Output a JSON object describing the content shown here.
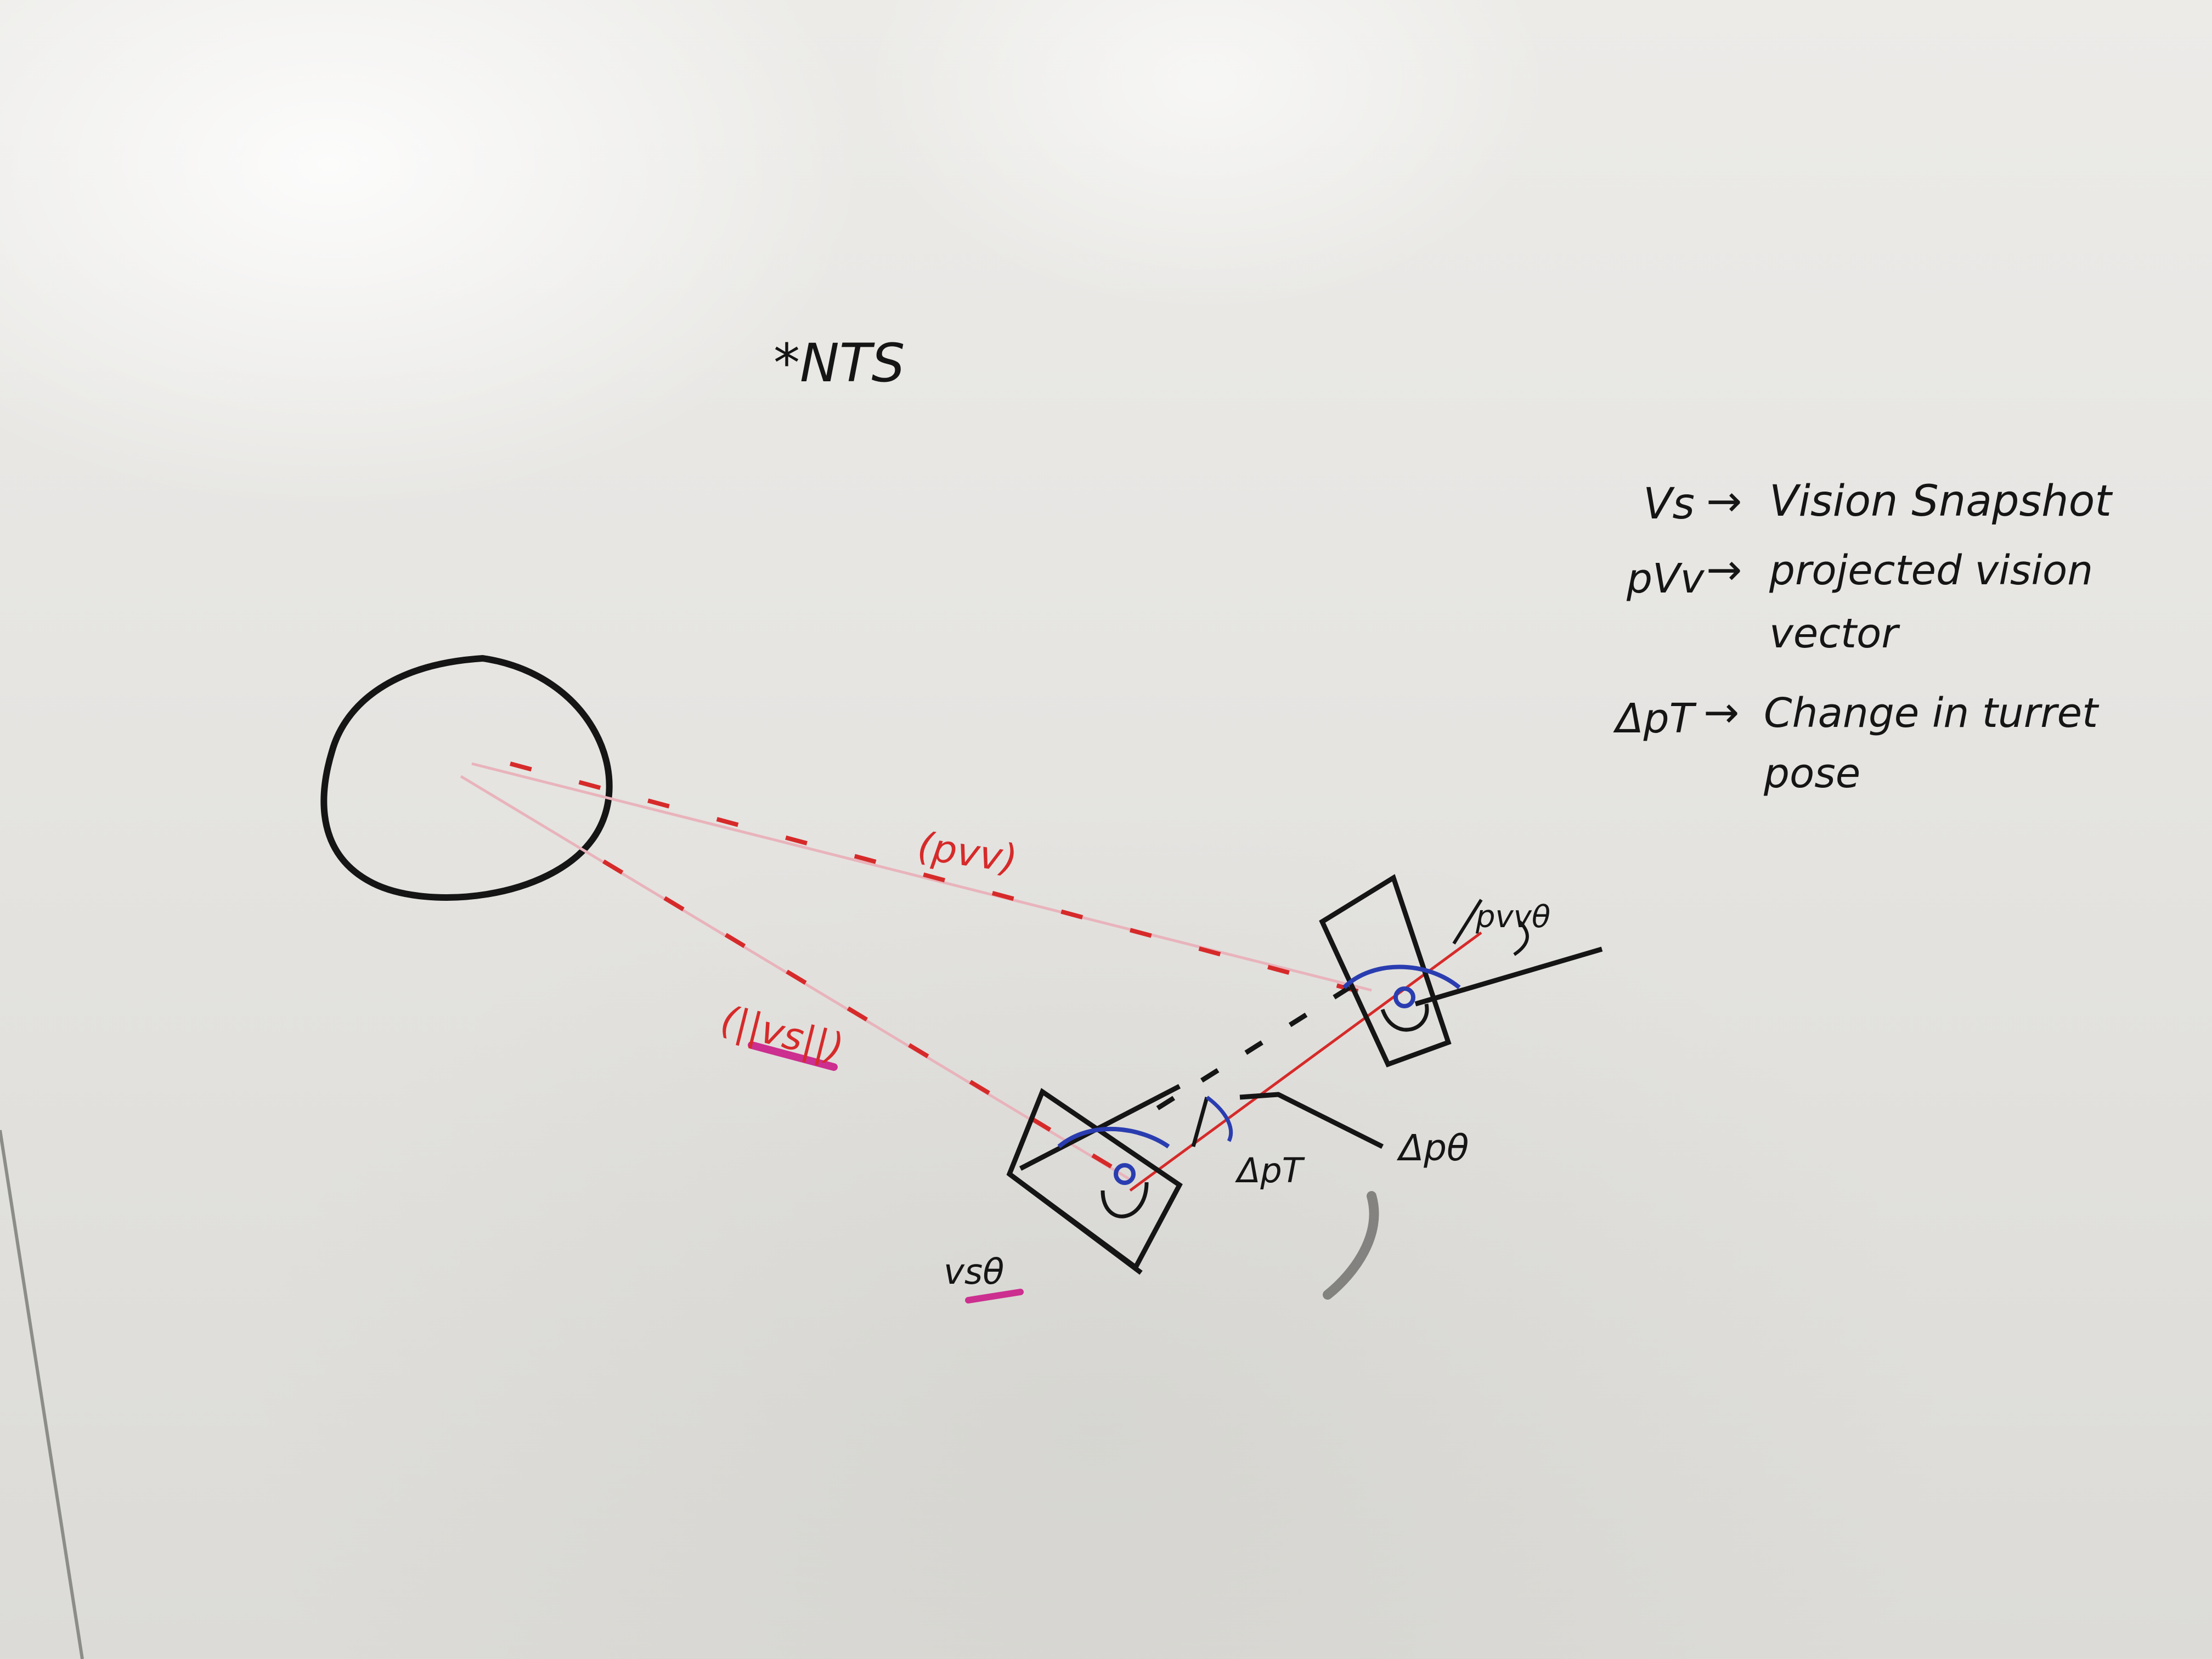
{
  "board": {
    "note": "*NTS"
  },
  "legend": {
    "items": [
      {
        "symbol": "Vs",
        "arrow": "→",
        "meaning": "Vision Snapshot"
      },
      {
        "symbol": "pVv",
        "arrow": "→",
        "meaning_line1": "projected vision",
        "meaning_line2": "vector"
      },
      {
        "symbol": "ΔpT",
        "arrow": "→",
        "meaning_line1": "Change in turret",
        "meaning_line2": "pose"
      }
    ]
  },
  "labels": {
    "projected_vector": "(pvv)",
    "snapshot_vector": "(||vs||)",
    "projected_angle": "pvvθ",
    "snapshot_angle": "vsθ",
    "turret_change": "ΔpT",
    "pose_angle": "Δpθ"
  },
  "colors": {
    "marker_black": "#151515",
    "marker_red": "#d62a2a",
    "marker_blue": "#2a3db0",
    "marker_magenta": "#cc2f8f"
  }
}
